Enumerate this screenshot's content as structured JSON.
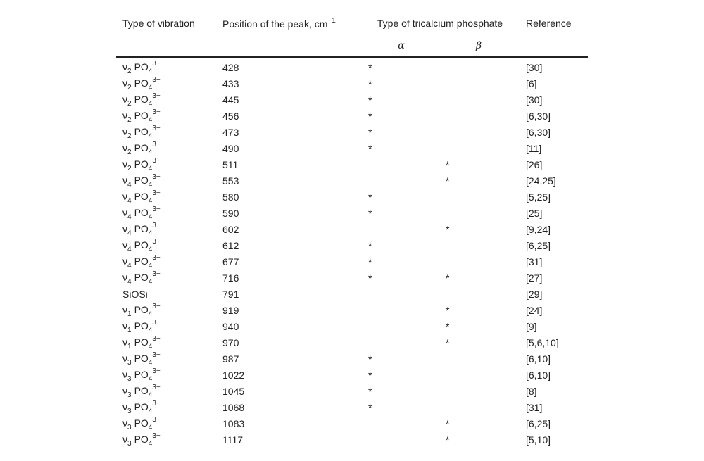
{
  "header": {
    "vibration": "Type of vibration",
    "position": "Position of the peak, cm",
    "position_exp": "−1",
    "tcp": "Type of tricalcium phosphate",
    "alpha": "α",
    "beta": "β",
    "reference": "Reference"
  },
  "rows": [
    {
      "vibration": [
        "ν",
        "2",
        "PO",
        "4",
        "3−"
      ],
      "position": "428",
      "alpha": "*",
      "beta": null,
      "reference": "[30]"
    },
    {
      "vibration": [
        "ν",
        "2",
        "PO",
        "4",
        "3−"
      ],
      "position": "433",
      "alpha": "*",
      "beta": null,
      "reference": "[6]"
    },
    {
      "vibration": [
        "ν",
        "2",
        "PO",
        "4",
        "3−"
      ],
      "position": "445",
      "alpha": "*",
      "beta": null,
      "reference": "[30]"
    },
    {
      "vibration": [
        "ν",
        "2",
        "PO",
        "4",
        "3−"
      ],
      "position": "456",
      "alpha": "*",
      "beta": null,
      "reference": "[6,30]"
    },
    {
      "vibration": [
        "ν",
        "2",
        "PO",
        "4",
        "3−"
      ],
      "position": "473",
      "alpha": "*",
      "beta": null,
      "reference": "[6,30]"
    },
    {
      "vibration": [
        "ν",
        "2",
        "PO",
        "4",
        "3−"
      ],
      "position": "490",
      "alpha": "*",
      "beta": null,
      "reference": "[11]"
    },
    {
      "vibration": [
        "ν",
        "2",
        "PO",
        "4",
        "3−"
      ],
      "position": "511",
      "alpha": null,
      "beta": "*",
      "reference": "[26]"
    },
    {
      "vibration": [
        "ν",
        "4",
        "PO",
        "4",
        "3−"
      ],
      "position": "553",
      "alpha": null,
      "beta": "*",
      "reference": "[24,25]"
    },
    {
      "vibration": [
        "ν",
        "4",
        "PO",
        "4",
        "3−"
      ],
      "position": "580",
      "alpha": "*",
      "beta": null,
      "reference": "[5,25]"
    },
    {
      "vibration": [
        "ν",
        "4",
        "PO",
        "4",
        "3−"
      ],
      "position": "590",
      "alpha": "*",
      "beta": null,
      "reference": "[25]"
    },
    {
      "vibration": [
        "ν",
        "4",
        "PO",
        "4",
        "3−"
      ],
      "position": "602",
      "alpha": null,
      "beta": "*",
      "reference": "[9,24]"
    },
    {
      "vibration": [
        "ν",
        "4",
        "PO",
        "4",
        "3−"
      ],
      "position": "612",
      "alpha": "*",
      "beta": null,
      "reference": "[6,25]"
    },
    {
      "vibration": [
        "ν",
        "4",
        "PO",
        "4",
        "3−"
      ],
      "position": "677",
      "alpha": "*",
      "beta": null,
      "reference": "[31]"
    },
    {
      "vibration": [
        "ν",
        "4",
        "PO",
        "4",
        "3−"
      ],
      "position": "716",
      "alpha": "*",
      "beta": "*",
      "reference": "[27]"
    },
    {
      "vibration": [
        "SiOSi"
      ],
      "position": "791",
      "alpha": null,
      "beta": null,
      "reference": "[29]"
    },
    {
      "vibration": [
        "ν",
        "1",
        "PO",
        "4",
        "3−"
      ],
      "position": "919",
      "alpha": null,
      "beta": "*",
      "reference": "[24]"
    },
    {
      "vibration": [
        "ν",
        "1",
        "PO",
        "4",
        "3−"
      ],
      "position": "940",
      "alpha": null,
      "beta": "*",
      "reference": "[9]"
    },
    {
      "vibration": [
        "ν",
        "1",
        "PO",
        "4",
        "3−"
      ],
      "position": "970",
      "alpha": null,
      "beta": "*",
      "reference": "[5,6,10]"
    },
    {
      "vibration": [
        "ν",
        "3",
        "PO",
        "4",
        "3−"
      ],
      "position": "987",
      "alpha": "*",
      "beta": null,
      "reference": "[6,10]"
    },
    {
      "vibration": [
        "ν",
        "3",
        "PO",
        "4",
        "3−"
      ],
      "position": "1022",
      "alpha": "*",
      "beta": null,
      "reference": "[6,10]"
    },
    {
      "vibration": [
        "ν",
        "3",
        "PO",
        "4",
        "3−"
      ],
      "position": "1045",
      "alpha": "*",
      "beta": null,
      "reference": "[8]"
    },
    {
      "vibration": [
        "ν",
        "3",
        "PO",
        "4",
        "3−"
      ],
      "position": "1068",
      "alpha": "*",
      "beta": null,
      "reference": "[31]"
    },
    {
      "vibration": [
        "ν",
        "3",
        "PO",
        "4",
        "3−"
      ],
      "position": "1083",
      "alpha": null,
      "beta": "*",
      "reference": "[6,25]"
    },
    {
      "vibration": [
        "ν",
        "3",
        "PO",
        "4",
        "3−"
      ],
      "position": "1117",
      "alpha": null,
      "beta": "*",
      "reference": "[5,10]"
    }
  ]
}
